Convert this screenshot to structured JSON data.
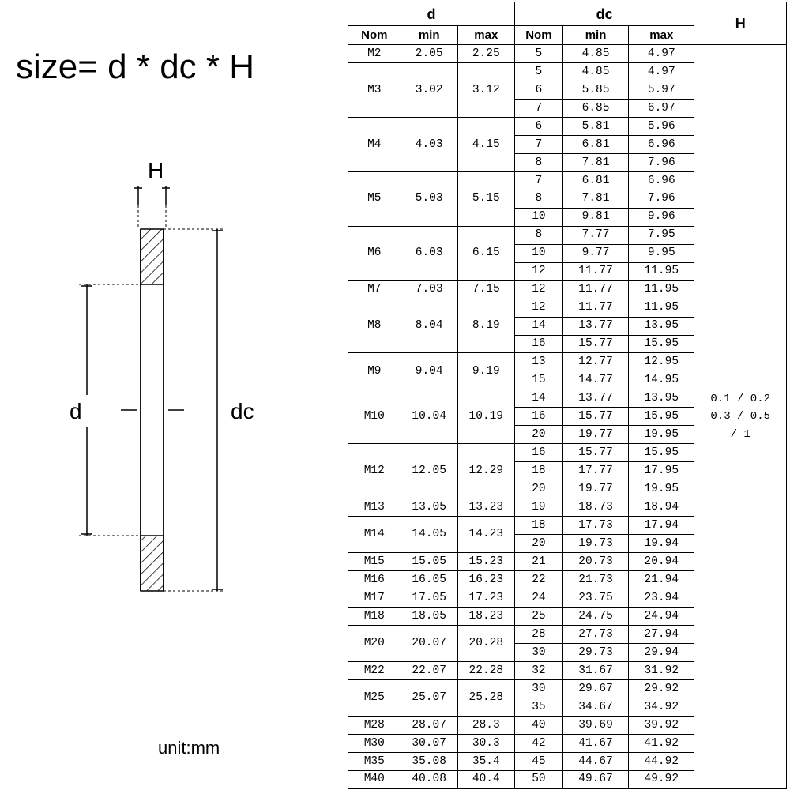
{
  "formula": "size= d * dc * H",
  "unit_label": "unit:mm",
  "diagram_labels": {
    "H": "H",
    "d": "d",
    "dc": "dc"
  },
  "table": {
    "groups": [
      {
        "title": "d",
        "cols": [
          "Nom",
          "min",
          "max"
        ]
      },
      {
        "title": "dc",
        "cols": [
          "Nom",
          "min",
          "max"
        ]
      }
    ],
    "h_header": "H",
    "h_value": "0.1 / 0.2\n0.3 / 0.5\n/ 1",
    "rows": [
      {
        "nom": "M2",
        "min": "2.05",
        "max": "2.25",
        "dc": [
          {
            "n": "5",
            "mn": "4.85",
            "mx": "4.97"
          }
        ]
      },
      {
        "nom": "M3",
        "min": "3.02",
        "max": "3.12",
        "dc": [
          {
            "n": "5",
            "mn": "4.85",
            "mx": "4.97"
          },
          {
            "n": "6",
            "mn": "5.85",
            "mx": "5.97"
          },
          {
            "n": "7",
            "mn": "6.85",
            "mx": "6.97"
          }
        ]
      },
      {
        "nom": "M4",
        "min": "4.03",
        "max": "4.15",
        "dc": [
          {
            "n": "6",
            "mn": "5.81",
            "mx": "5.96"
          },
          {
            "n": "7",
            "mn": "6.81",
            "mx": "6.96"
          },
          {
            "n": "8",
            "mn": "7.81",
            "mx": "7.96"
          }
        ]
      },
      {
        "nom": "M5",
        "min": "5.03",
        "max": "5.15",
        "dc": [
          {
            "n": "7",
            "mn": "6.81",
            "mx": "6.96"
          },
          {
            "n": "8",
            "mn": "7.81",
            "mx": "7.96"
          },
          {
            "n": "10",
            "mn": "9.81",
            "mx": "9.96"
          }
        ]
      },
      {
        "nom": "M6",
        "min": "6.03",
        "max": "6.15",
        "dc": [
          {
            "n": "8",
            "mn": "7.77",
            "mx": "7.95"
          },
          {
            "n": "10",
            "mn": "9.77",
            "mx": "9.95"
          },
          {
            "n": "12",
            "mn": "11.77",
            "mx": "11.95"
          }
        ]
      },
      {
        "nom": "M7",
        "min": "7.03",
        "max": "7.15",
        "dc": [
          {
            "n": "12",
            "mn": "11.77",
            "mx": "11.95"
          }
        ]
      },
      {
        "nom": "M8",
        "min": "8.04",
        "max": "8.19",
        "dc": [
          {
            "n": "12",
            "mn": "11.77",
            "mx": "11.95"
          },
          {
            "n": "14",
            "mn": "13.77",
            "mx": "13.95"
          },
          {
            "n": "16",
            "mn": "15.77",
            "mx": "15.95"
          }
        ]
      },
      {
        "nom": "M9",
        "min": "9.04",
        "max": "9.19",
        "dc": [
          {
            "n": "13",
            "mn": "12.77",
            "mx": "12.95"
          },
          {
            "n": "15",
            "mn": "14.77",
            "mx": "14.95"
          }
        ]
      },
      {
        "nom": "M10",
        "min": "10.04",
        "max": "10.19",
        "dc": [
          {
            "n": "14",
            "mn": "13.77",
            "mx": "13.95"
          },
          {
            "n": "16",
            "mn": "15.77",
            "mx": "15.95"
          },
          {
            "n": "20",
            "mn": "19.77",
            "mx": "19.95"
          }
        ]
      },
      {
        "nom": "M12",
        "min": "12.05",
        "max": "12.29",
        "dc": [
          {
            "n": "16",
            "mn": "15.77",
            "mx": "15.95"
          },
          {
            "n": "18",
            "mn": "17.77",
            "mx": "17.95"
          },
          {
            "n": "20",
            "mn": "19.77",
            "mx": "19.95"
          }
        ]
      },
      {
        "nom": "M13",
        "min": "13.05",
        "max": "13.23",
        "dc": [
          {
            "n": "19",
            "mn": "18.73",
            "mx": "18.94"
          }
        ]
      },
      {
        "nom": "M14",
        "min": "14.05",
        "max": "14.23",
        "dc": [
          {
            "n": "18",
            "mn": "17.73",
            "mx": "17.94"
          },
          {
            "n": "20",
            "mn": "19.73",
            "mx": "19.94"
          }
        ]
      },
      {
        "nom": "M15",
        "min": "15.05",
        "max": "15.23",
        "dc": [
          {
            "n": "21",
            "mn": "20.73",
            "mx": "20.94"
          }
        ]
      },
      {
        "nom": "M16",
        "min": "16.05",
        "max": "16.23",
        "dc": [
          {
            "n": "22",
            "mn": "21.73",
            "mx": "21.94"
          }
        ]
      },
      {
        "nom": "M17",
        "min": "17.05",
        "max": "17.23",
        "dc": [
          {
            "n": "24",
            "mn": "23.75",
            "mx": "23.94"
          }
        ]
      },
      {
        "nom": "M18",
        "min": "18.05",
        "max": "18.23",
        "dc": [
          {
            "n": "25",
            "mn": "24.75",
            "mx": "24.94"
          }
        ]
      },
      {
        "nom": "M20",
        "min": "20.07",
        "max": "20.28",
        "dc": [
          {
            "n": "28",
            "mn": "27.73",
            "mx": "27.94"
          },
          {
            "n": "30",
            "mn": "29.73",
            "mx": "29.94"
          }
        ]
      },
      {
        "nom": "M22",
        "min": "22.07",
        "max": "22.28",
        "dc": [
          {
            "n": "32",
            "mn": "31.67",
            "mx": "31.92"
          }
        ]
      },
      {
        "nom": "M25",
        "min": "25.07",
        "max": "25.28",
        "dc": [
          {
            "n": "30",
            "mn": "29.67",
            "mx": "29.92"
          },
          {
            "n": "35",
            "mn": "34.67",
            "mx": "34.92"
          }
        ]
      },
      {
        "nom": "M28",
        "min": "28.07",
        "max": "28.3",
        "dc": [
          {
            "n": "40",
            "mn": "39.69",
            "mx": "39.92"
          }
        ]
      },
      {
        "nom": "M30",
        "min": "30.07",
        "max": "30.3",
        "dc": [
          {
            "n": "42",
            "mn": "41.67",
            "mx": "41.92"
          }
        ]
      },
      {
        "nom": "M35",
        "min": "35.08",
        "max": "35.4",
        "dc": [
          {
            "n": "45",
            "mn": "44.67",
            "mx": "44.92"
          }
        ]
      },
      {
        "nom": "M40",
        "min": "40.08",
        "max": "40.4",
        "dc": [
          {
            "n": "50",
            "mn": "49.67",
            "mx": "49.92"
          }
        ]
      }
    ],
    "colors": {
      "border": "#000000",
      "bg": "#ffffff",
      "text": "#000000"
    },
    "font_sizes": {
      "header": 18,
      "subheader": 15,
      "cell": 14.5
    }
  }
}
